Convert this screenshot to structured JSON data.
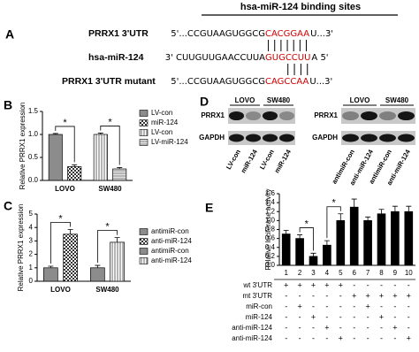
{
  "panel_labels": [
    "A",
    "B",
    "C",
    "D",
    "E"
  ],
  "binding": {
    "header": "hsa-miR-124 binding sites",
    "rows": [
      {
        "label": "PRRX1 3'UTR",
        "parts": [
          "5'...CCGUAAGUGGCG",
          "CACGGAA",
          "U...3'"
        ]
      },
      {
        "label": "hsa-miR-124",
        "parts": [
          "3'  CUUGUUGAACCUUA",
          "GUGCCUU",
          "A  5'"
        ]
      },
      {
        "label": "PRRX1 3'UTR mutant",
        "parts": [
          "5'...CCGUAAGUGGCG",
          "CAGCCAA",
          "U...3'"
        ]
      }
    ]
  },
  "blots": [
    {
      "cell_lines": [
        "LOVO",
        "SW480"
      ],
      "proteins": [
        "PRRX1",
        "GAPDH"
      ],
      "lanes": [
        "LV-con",
        "miR-124",
        "LV-con",
        "miR-124"
      ]
    },
    {
      "cell_lines": [
        "LOVO",
        "SW480"
      ],
      "proteins": [
        "PRRX1",
        "GAPDH"
      ],
      "lanes": [
        "antimiR-con",
        "anti-miR-124",
        "antimiR-con",
        "anti-miR-124"
      ]
    }
  ],
  "chart_data": [
    {
      "type": "bar",
      "ylabel": "Relative PRRX1 expression",
      "categories": [
        "LOVO",
        "SW480"
      ],
      "series": [
        {
          "name": "LV-con",
          "color": "#8c8c8c",
          "values": [
            1.0,
            null
          ],
          "errors": [
            0.02,
            null
          ]
        },
        {
          "name": "miR-124",
          "color": "#ffffff",
          "pattern": "checker",
          "values": [
            0.3,
            null
          ],
          "errors": [
            0.04,
            null
          ]
        },
        {
          "name": "LV-con",
          "color": "#ffffff",
          "pattern": "vstripe",
          "values": [
            null,
            1.0
          ],
          "errors": [
            null,
            0.03
          ]
        },
        {
          "name": "LV-miR-124",
          "color": "#d9d9d9",
          "pattern": "hstripe",
          "values": [
            null,
            0.25
          ],
          "errors": [
            null,
            0.03
          ]
        }
      ],
      "ylim": [
        0,
        1.5
      ],
      "yticks": [
        {
          "value": 0,
          "label": "0.0"
        },
        {
          "value": 0.5,
          "label": "0.5"
        },
        {
          "value": 1,
          "label": "1.0"
        },
        {
          "value": 1.5,
          "label": "1.5"
        }
      ],
      "significance": [
        "*",
        "*"
      ],
      "legend": "right"
    },
    {
      "type": "bar",
      "ylabel": "Relative PRRX1 expression",
      "categories": [
        "LOVO",
        "SW480"
      ],
      "series": [
        {
          "name": "antimiR-con",
          "color": "#8c8c8c",
          "values": [
            1.0,
            null
          ],
          "errors": [
            0.12,
            null
          ]
        },
        {
          "name": "anti-miR-124",
          "color": "#ffffff",
          "pattern": "checker",
          "values": [
            3.5,
            null
          ],
          "errors": [
            0.35,
            null
          ]
        },
        {
          "name": "antimiR-con",
          "color": "#8c8c8c",
          "values": [
            null,
            1.0
          ],
          "errors": [
            null,
            0.18
          ]
        },
        {
          "name": "anti-miR-124",
          "color": "#ffffff",
          "pattern": "vstripe",
          "values": [
            null,
            2.9
          ],
          "errors": [
            null,
            0.35
          ]
        }
      ],
      "ylim": [
        0,
        5
      ],
      "yticks": [
        0,
        1,
        2,
        3,
        4,
        5
      ],
      "significance": [
        "*",
        "*"
      ],
      "legend": "right"
    },
    {
      "type": "bar",
      "ylabel": "Relative luciferase activity",
      "categories": [
        "1",
        "2",
        "3",
        "4",
        "5",
        "6",
        "7",
        "8",
        "9",
        "10"
      ],
      "values": [
        0.7,
        0.6,
        0.2,
        0.45,
        1.0,
        1.3,
        1.0,
        1.15,
        1.2,
        1.2
      ],
      "errors": [
        0.08,
        0.08,
        0.07,
        0.1,
        0.15,
        0.18,
        0.08,
        0.1,
        0.12,
        0.12
      ],
      "color": "#000000",
      "ylim": [
        0,
        1.6
      ],
      "yticks": [
        {
          "value": 0,
          "label": "0.0"
        },
        {
          "value": 0.2,
          "label": "0.2"
        },
        {
          "value": 0.4,
          "label": "0.4"
        },
        {
          "value": 0.6,
          "label": "0.6"
        },
        {
          "value": 0.8,
          "label": "0.8"
        },
        {
          "value": 1,
          "label": "1.0"
        },
        {
          "value": 1.2,
          "label": "1.2"
        },
        {
          "value": 1.4,
          "label": "1.4"
        },
        {
          "value": 1.6,
          "label": "1.6"
        }
      ],
      "significance": [
        "*",
        "*"
      ]
    }
  ],
  "luciferase_table": {
    "rows": [
      {
        "label": "wt 3'UTR",
        "cells": [
          "+",
          "+",
          "+",
          "+",
          "+",
          "-",
          "-",
          "-",
          "-",
          "-"
        ]
      },
      {
        "label": "mt 3'UTR",
        "cells": [
          "-",
          "-",
          "-",
          "-",
          "-",
          "+",
          "+",
          "+",
          "+",
          "+"
        ]
      },
      {
        "label": "miR-con",
        "cells": [
          "-",
          "+",
          "-",
          "-",
          "-",
          "-",
          "+",
          "-",
          "-",
          "-"
        ]
      },
      {
        "label": "miR-124",
        "cells": [
          "-",
          "-",
          "+",
          "-",
          "-",
          "-",
          "-",
          "+",
          "-",
          "-"
        ]
      },
      {
        "label": "anti-miR-124",
        "cells": [
          "-",
          "-",
          "-",
          "+",
          "-",
          "-",
          "-",
          "-",
          "+",
          "-"
        ]
      },
      {
        "label": "anti-miR-124",
        "cells": [
          "-",
          "-",
          "-",
          "-",
          "+",
          "-",
          "-",
          "-",
          "-",
          "+"
        ]
      }
    ]
  }
}
